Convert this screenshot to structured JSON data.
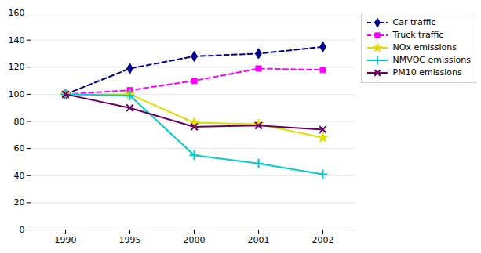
{
  "chart_data": {
    "type": "line",
    "categories": [
      "1990",
      "1995",
      "2000",
      "2001",
      "2002"
    ],
    "series": [
      {
        "name": "Car traffic",
        "color": "#00008B",
        "values": [
          100,
          119,
          128,
          130,
          135
        ],
        "marker": "diamond",
        "line_style": "dashed"
      },
      {
        "name": "Truck traffic",
        "color": "#FF00FF",
        "values": [
          100,
          103,
          110,
          119,
          118
        ],
        "marker": "square",
        "line_style": "dashed"
      },
      {
        "name": "NOx emissions",
        "color": "#DDDD00",
        "values": [
          100,
          100,
          79,
          78,
          68
        ],
        "marker": "star",
        "line_style": "solid"
      },
      {
        "name": "NMVOC emissions",
        "color": "#00CCCC",
        "values": [
          100,
          99,
          55,
          49,
          41
        ],
        "marker": "plus",
        "line_style": "solid"
      },
      {
        "name": "PM10 emissions",
        "color": "#660066",
        "values": [
          100,
          90,
          76,
          77,
          74
        ],
        "marker": "x",
        "line_style": "solid"
      }
    ],
    "ylim": [
      0,
      160
    ],
    "yticks": [
      0,
      20,
      40,
      60,
      80,
      100,
      120,
      140,
      160
    ],
    "grid": true,
    "legend": "upper right"
  }
}
